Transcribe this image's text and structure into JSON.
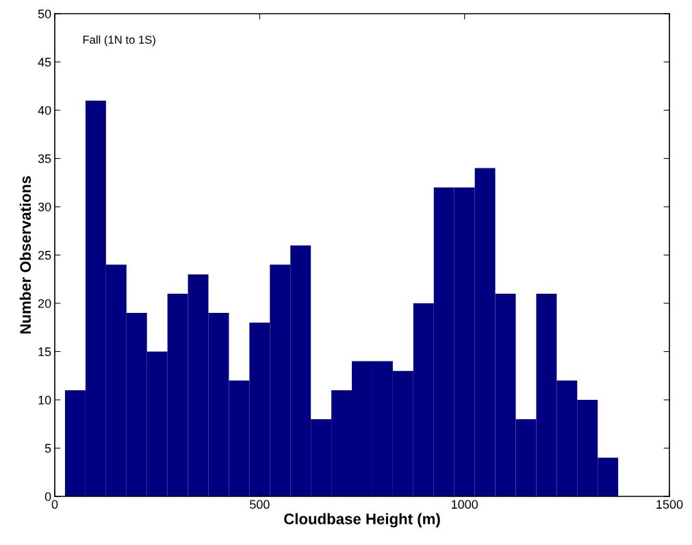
{
  "chart_data": {
    "type": "histogram",
    "xlabel": "Cloudbase Height (m)",
    "ylabel": "Number Observations",
    "annotations": [
      "Fall (1N to 1S)"
    ],
    "bins": [
      25,
      75,
      125,
      175,
      225,
      275,
      325,
      375,
      425,
      475,
      525,
      575,
      625,
      675,
      725,
      775,
      825,
      875,
      925,
      975,
      1025,
      1075,
      1125,
      1175,
      1225,
      1275,
      1325,
      1375
    ],
    "values": [
      11,
      41,
      24,
      19,
      15,
      21,
      23,
      19,
      12,
      18,
      24,
      26,
      8,
      11,
      14,
      14,
      13,
      20,
      32,
      32,
      34,
      21,
      8,
      21,
      12,
      10,
      4
    ],
    "color": "#000080",
    "xlim": [
      0,
      1500
    ],
    "xticks": [
      0,
      500,
      1000,
      1500
    ],
    "ylim": [
      0,
      50
    ],
    "yticks": [
      0,
      5,
      10,
      15,
      20,
      25,
      30,
      35,
      40,
      45,
      50
    ],
    "grid": false
  }
}
